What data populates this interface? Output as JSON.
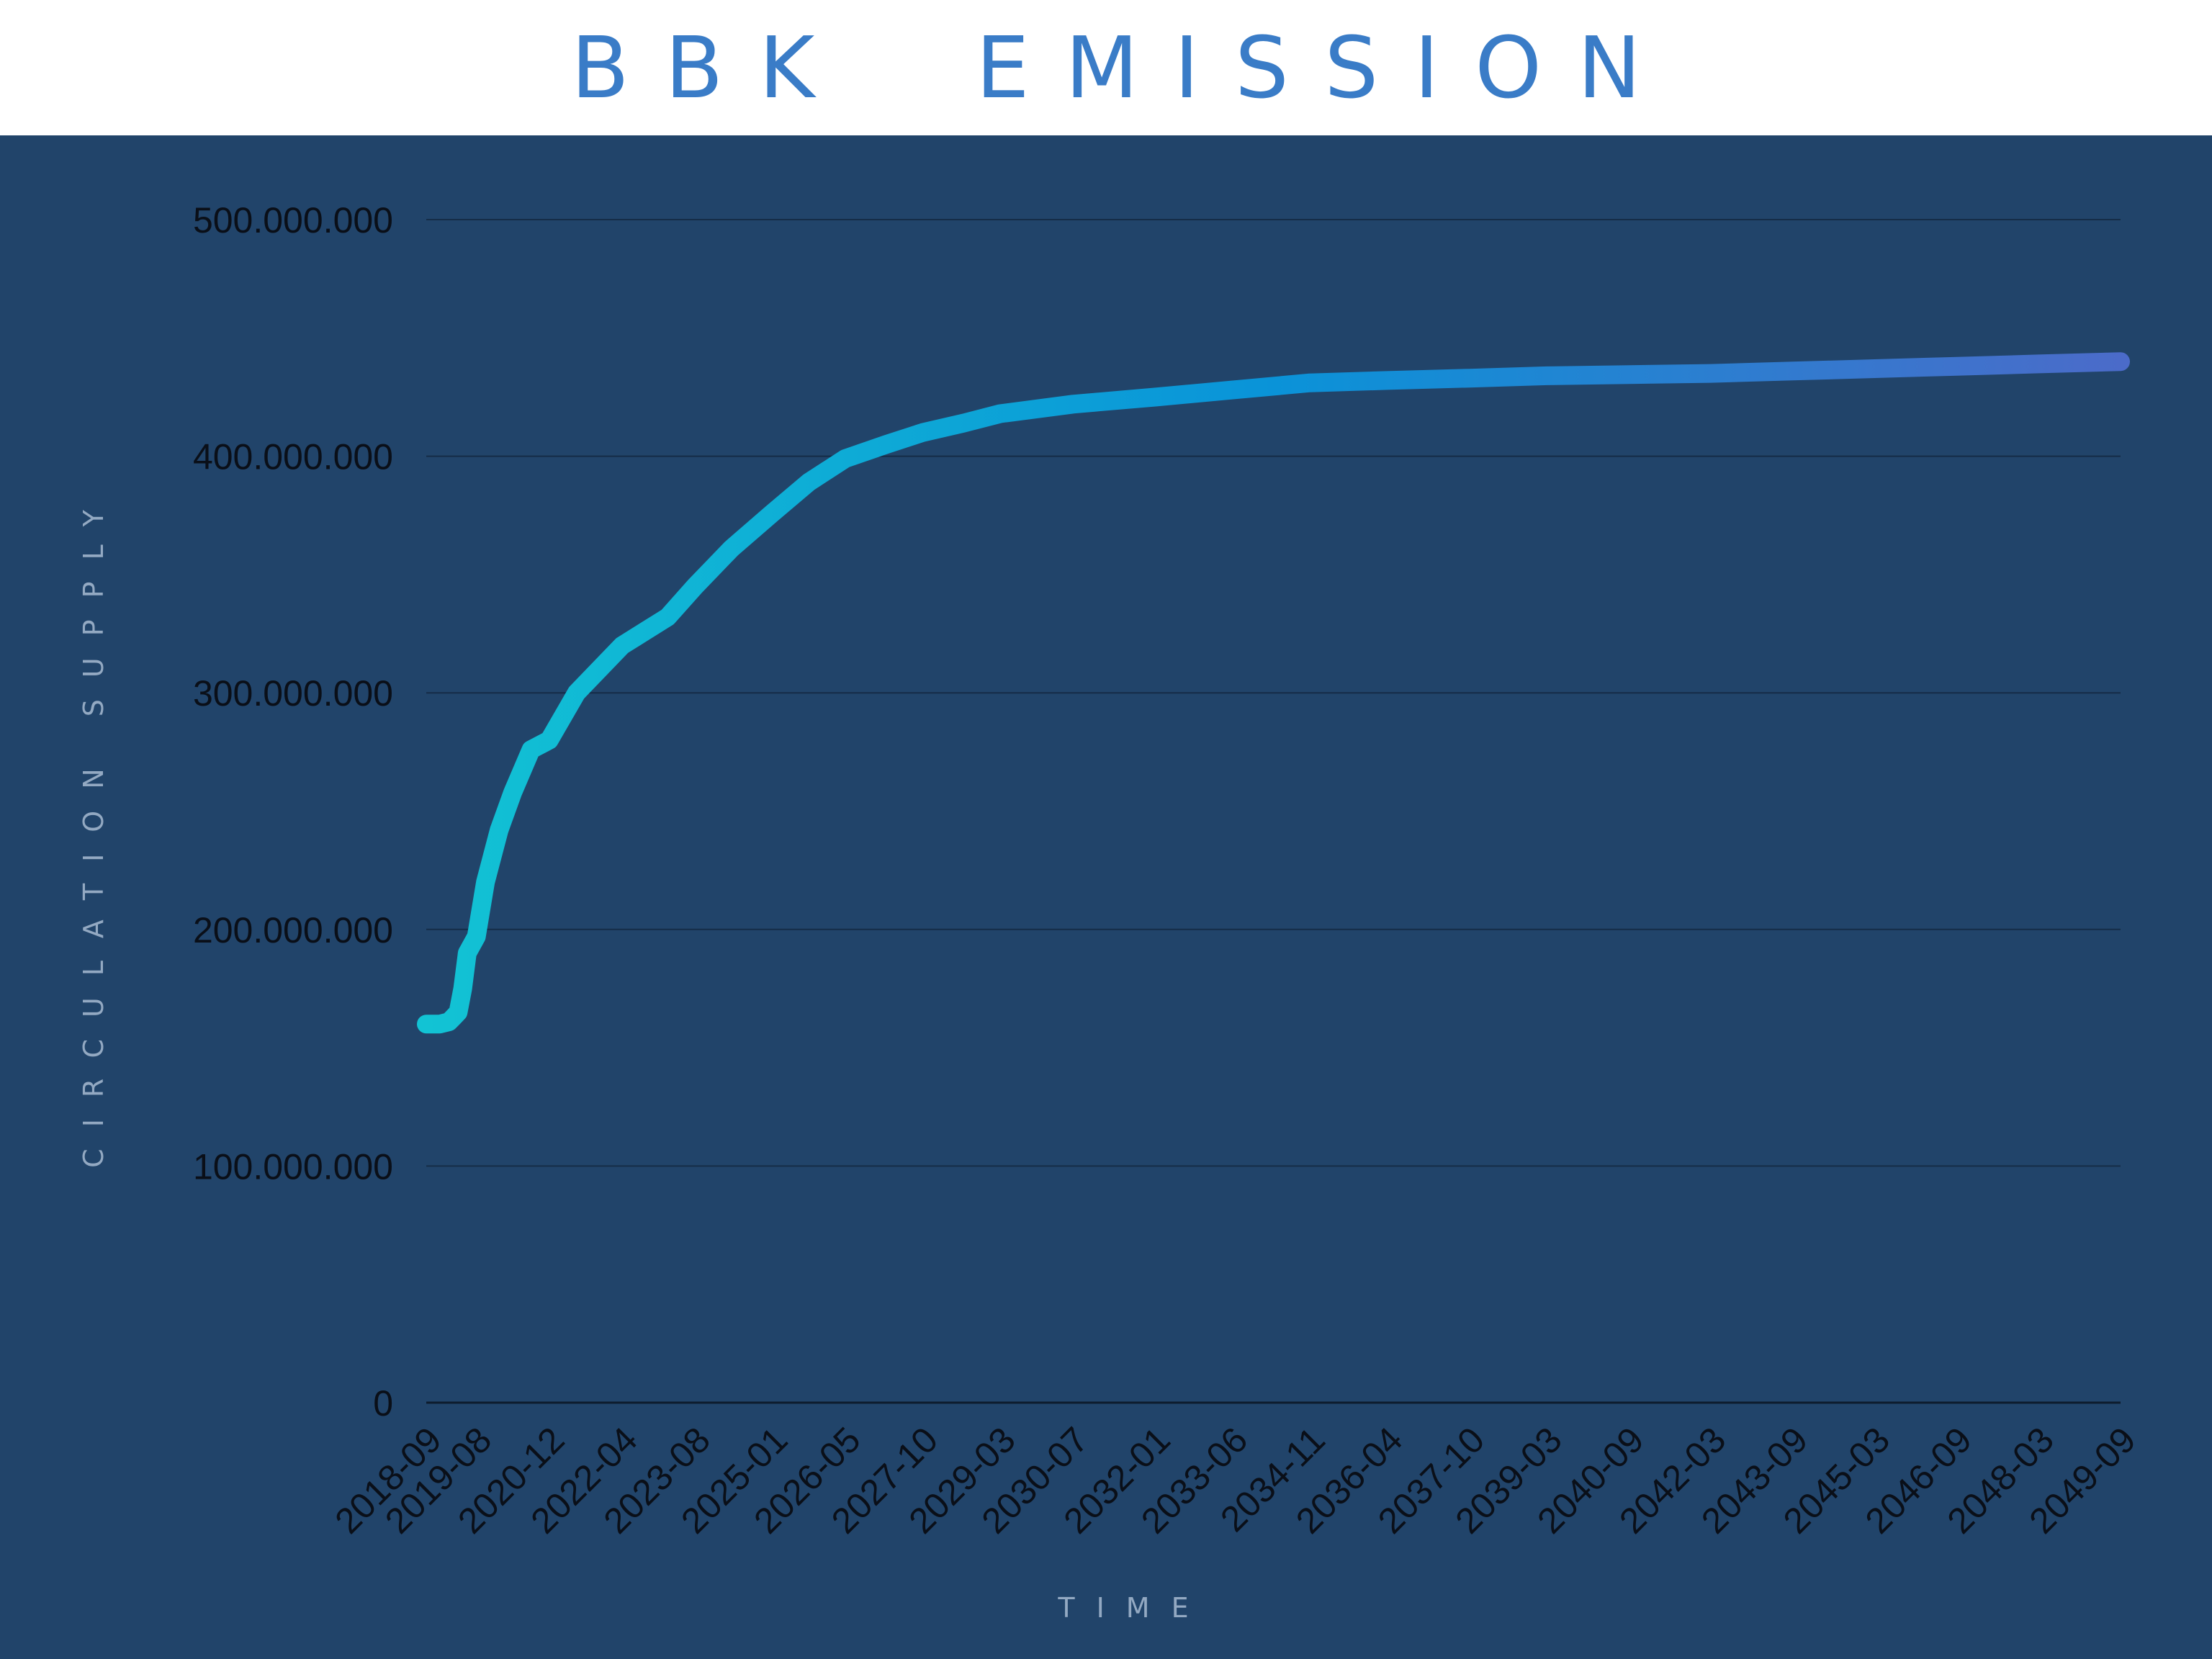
{
  "header": {
    "title": "BBK  EMISSION"
  },
  "colors": {
    "panel_background": "#21446a",
    "title": "#3a7cc7",
    "gridline": "#152c47",
    "line_start": "#12c3d4",
    "line_mid": "#0a93d8",
    "line_end": "#4b6bc9",
    "tick_text": "#0a0f18",
    "axis_label": "#93a9c2"
  },
  "chart_data": {
    "type": "line",
    "title": "BBK  EMISSION",
    "xlabel": "TIME",
    "ylabel": "CIRCULATION SUPPLY",
    "ylim": [
      0,
      500000000
    ],
    "yticks": [
      0,
      100000000,
      200000000,
      300000000,
      400000000,
      500000000
    ],
    "ytick_labels": [
      "0",
      "100.000.000",
      "200.000.000",
      "300.000.000",
      "400.000.000",
      "500.000.000"
    ],
    "grid": true,
    "legend": "none",
    "x_ticks": [
      "2018-09",
      "2019-08",
      "2020-12",
      "2022-04",
      "2023-08",
      "2025-01",
      "2026-05",
      "2027-10",
      "2029-03",
      "2030-07",
      "2032-01",
      "2033-06",
      "2034-11",
      "2036-04",
      "2037-10",
      "2039-03",
      "2040-09",
      "2042-03",
      "2043-09",
      "2045-03",
      "2046-09",
      "2048-03",
      "2049-09"
    ],
    "series": [
      {
        "x": [
          "2018-09",
          "2018-12",
          "2019-02",
          "2019-03",
          "2019-04",
          "2019-05",
          "2019-06",
          "2019-08",
          "2019-10",
          "2020-01",
          "2020-04",
          "2020-08",
          "2020-12",
          "2021-06",
          "2022-04",
          "2023-02",
          "2023-08",
          "2024-04",
          "2025-01",
          "2025-09",
          "2026-05",
          "2027-02",
          "2027-10",
          "2028-07",
          "2029-03",
          "2030-07",
          "2032-01",
          "2033-06",
          "2034-11",
          "2036-04",
          "2037-10",
          "2039-03",
          "2040-09",
          "2042-03",
          "2043-09",
          "2045-03",
          "2046-09",
          "2048-03",
          "2049-09"
        ],
        "values": [
          160000000,
          160000000,
          161000000,
          163000000,
          165000000,
          175000000,
          190000000,
          197000000,
          220000000,
          242000000,
          258000000,
          276000000,
          280000000,
          300000000,
          320000000,
          332000000,
          345000000,
          361000000,
          376000000,
          389000000,
          399000000,
          405000000,
          410000000,
          414000000,
          418000000,
          422000000,
          425000000,
          428000000,
          431000000,
          432000000,
          433000000,
          434000000,
          434500000,
          435000000,
          436000000,
          437000000,
          438000000,
          439000000,
          440000000
        ]
      }
    ]
  }
}
